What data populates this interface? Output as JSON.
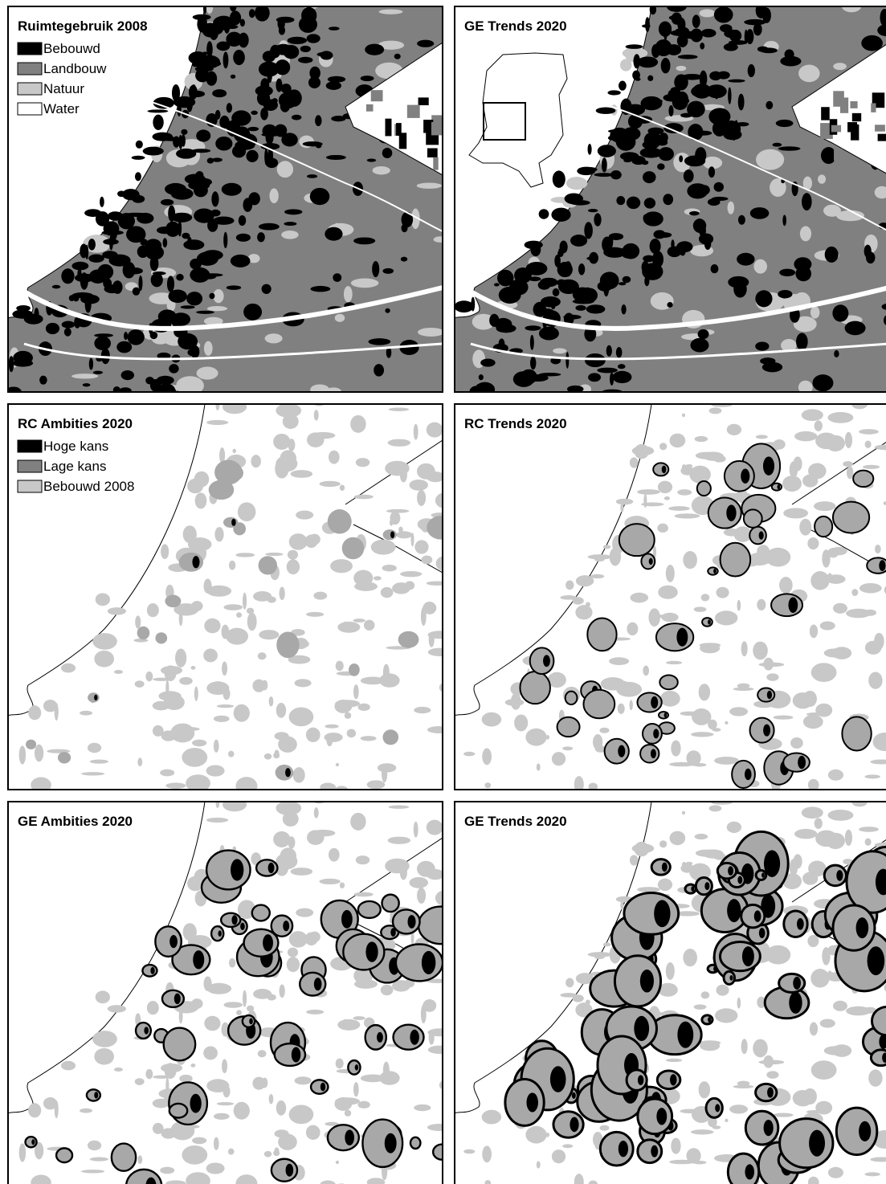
{
  "panels": [
    {
      "title": "Ruimtegebruik 2008",
      "legend": [
        {
          "label": "Bebouwd",
          "color": "#000000"
        },
        {
          "label": "Landbouw",
          "color": "#808080"
        },
        {
          "label": "Natuur",
          "color": "#c8c8c8"
        },
        {
          "label": "Water",
          "color": "#ffffff"
        }
      ]
    },
    {
      "title": "GE Trends 2020"
    },
    {
      "title": "RC Ambities 2020",
      "legend": [
        {
          "label": "Hoge kans",
          "color": "#000000"
        },
        {
          "label": "Lage kans",
          "color": "#808080"
        },
        {
          "label": "Bebouwd 2008",
          "color": "#c8c8c8"
        }
      ]
    },
    {
      "title": "RC Trends 2020"
    },
    {
      "title": "GE Ambities 2020"
    },
    {
      "title": "GE Trends 2020"
    }
  ]
}
